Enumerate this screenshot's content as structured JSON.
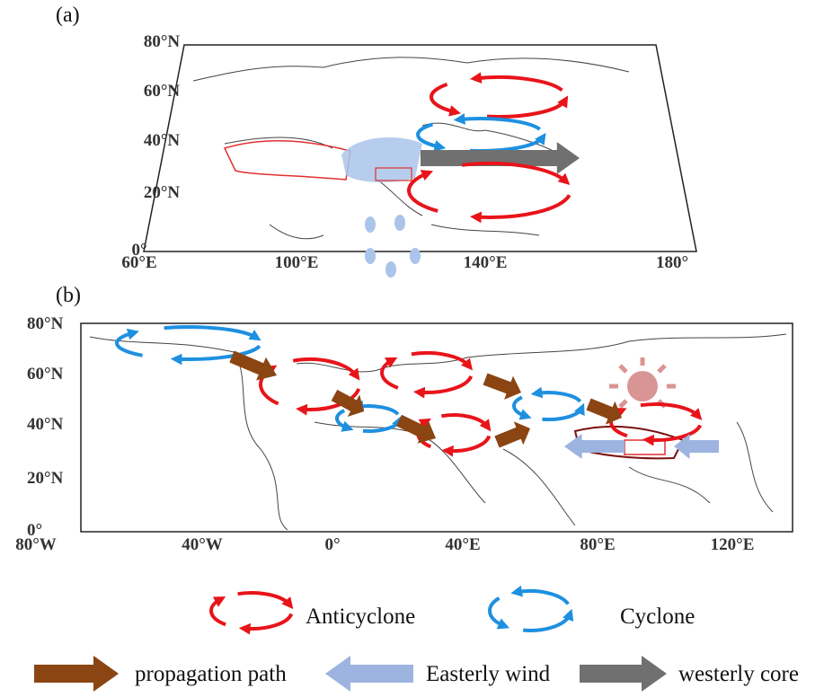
{
  "panels": [
    {
      "label": "(a)",
      "lat_labels": [
        "80°N",
        "60°N",
        "40°N",
        "20°N",
        "0°"
      ],
      "lon_labels": [
        "60°E",
        "100°E",
        "140°E",
        "180°"
      ]
    },
    {
      "label": "(b)",
      "lat_labels": [
        "80°N",
        "60°N",
        "40°N",
        "20°N",
        "0°"
      ],
      "lon_labels": [
        "80°W",
        "40°W",
        "0°",
        "40°E",
        "80°E",
        "120°E"
      ]
    }
  ],
  "legend": {
    "anticyclone": "Anticyclone",
    "cyclone": "Cyclone",
    "propagation": "propagation path",
    "easterly": "Easterly wind",
    "westerly": "westerly core"
  }
}
